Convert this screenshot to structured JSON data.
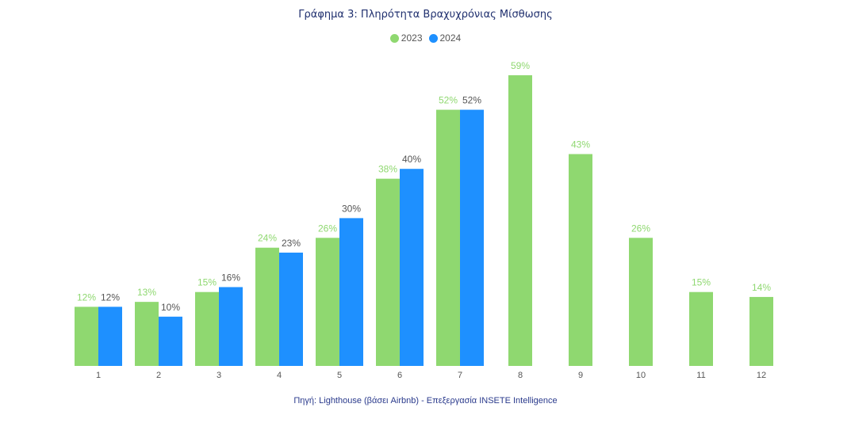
{
  "chart_data": {
    "type": "bar",
    "title": "Γράφημα 3: Πληρότητα Βραχυχρόνιας Μίσθωσης",
    "categories": [
      "1",
      "2",
      "3",
      "4",
      "5",
      "6",
      "7",
      "8",
      "9",
      "10",
      "11",
      "12"
    ],
    "series": [
      {
        "name": "2023",
        "color": "#8fd870",
        "label_color": "#8fd870",
        "values": [
          12,
          13,
          15,
          24,
          26,
          38,
          52,
          59,
          43,
          26,
          15,
          14
        ],
        "labels": [
          "12%",
          "13%",
          "15%",
          "24%",
          "26%",
          "38%",
          "52%",
          "59%",
          "43%",
          "26%",
          "15%",
          "14%"
        ]
      },
      {
        "name": "2024",
        "color": "#1e90ff",
        "label_color": "#555555",
        "values": [
          12,
          10,
          16,
          23,
          30,
          40,
          52,
          null,
          null,
          null,
          null,
          null
        ],
        "labels": [
          "12%",
          "10%",
          "16%",
          "23%",
          "30%",
          "40%",
          "52%",
          "",
          "",
          "",
          "",
          ""
        ]
      }
    ],
    "ylim": [
      0,
      60
    ],
    "grid": false,
    "legend_position": "top-center",
    "source": "Πηγή: Lighthouse (βάσει Airbnb) - Επεξεργασία INSETE Intelligence"
  }
}
